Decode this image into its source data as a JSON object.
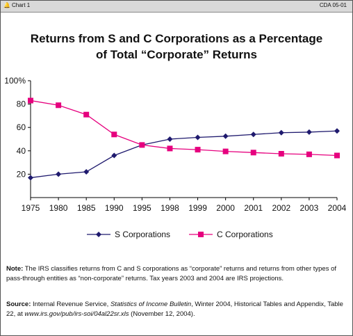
{
  "header": {
    "chart_label": "Chart 1",
    "doc_id": "CDA 05-01",
    "bell_icon": "bell-icon"
  },
  "chart_data": {
    "type": "line",
    "title_line1": "Returns from S and C Corporations as a Percentage",
    "title_line2": "of Total “Corporate” Returns",
    "categories": [
      "1975",
      "1980",
      "1985",
      "1990",
      "1995",
      "1998",
      "1999",
      "2000",
      "2001",
      "2002",
      "2003",
      "2004"
    ],
    "y_ticks": [
      "100%",
      "80",
      "60",
      "40",
      "20"
    ],
    "ylim": [
      0,
      100
    ],
    "series": [
      {
        "name": "S Corporations",
        "color": "#1f1a6e",
        "marker": "diamond",
        "values": [
          17,
          20,
          22,
          36,
          45,
          50,
          51.5,
          52.5,
          54,
          55.5,
          56,
          57
        ]
      },
      {
        "name": "C Corporations",
        "color": "#e6007e",
        "marker": "square",
        "values": [
          83,
          79,
          71,
          54,
          45,
          42,
          41,
          39.5,
          38.5,
          37.5,
          37,
          36
        ]
      }
    ],
    "legend_position": "bottom"
  },
  "note": {
    "label": "Note:",
    "text": " The IRS classifies returns from C and S corporations as “corporate” returns and returns from other types of pass-through entities as “non-corporate” returns. Tax years 2003 and 2004 are IRS projections."
  },
  "source": {
    "label": "Source:",
    "text_a": " Internal Revenue Service, ",
    "publication": "Statistics of Income Bulletin",
    "text_b": ", Winter 2004, Historical Tables and Appendix, Table 22, at ",
    "url": "www.irs.gov/pub/irs-soi/04al22sr.xls",
    "text_c": " (November 12, 2004)."
  }
}
